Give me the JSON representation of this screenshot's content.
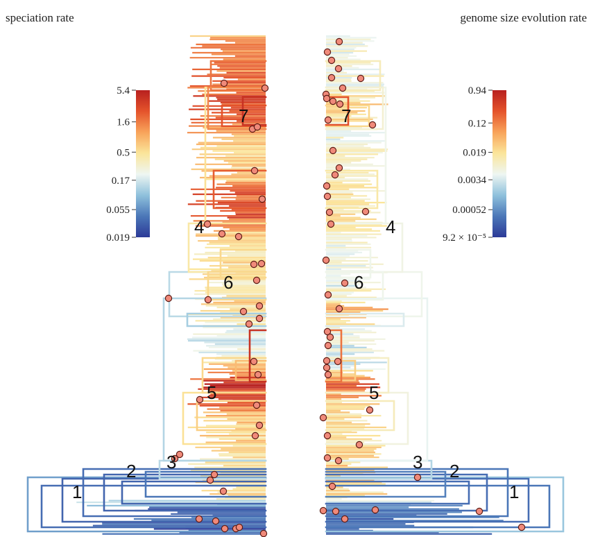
{
  "chart_data": [
    {
      "type": "heatmap",
      "title": "speciation rate",
      "panel": "left",
      "scale": "log",
      "colorbar_ticks": [
        "5.4",
        "1.6",
        "0.5",
        "0.17",
        "0.055",
        "0.019"
      ],
      "colorbar_values": [
        5.4,
        1.6,
        0.5,
        0.17,
        0.055,
        0.019
      ],
      "colormap": [
        "#2c3a97",
        "#4b77b8",
        "#8fc1dc",
        "#eef6f2",
        "#fbe59a",
        "#f8a35a",
        "#e4532b",
        "#b8201f"
      ],
      "clade_labels": [
        "1",
        "2",
        "3",
        "4",
        "5",
        "6",
        "7"
      ]
    },
    {
      "type": "heatmap",
      "title": "genome size evolution rate",
      "panel": "right",
      "scale": "log",
      "colorbar_ticks": [
        "0.94",
        "0.12",
        "0.019",
        "0.0034",
        "0.00052",
        "9.2 × 10⁻⁵"
      ],
      "colorbar_values": [
        0.94,
        0.12,
        0.019,
        0.0034,
        0.00052,
        9.2e-05
      ],
      "colormap": [
        "#2c3a97",
        "#4b77b8",
        "#8fc1dc",
        "#eef6f2",
        "#fbe59a",
        "#f8a35a",
        "#e4532b",
        "#b8201f"
      ],
      "clade_labels": [
        "1",
        "2",
        "3",
        "4",
        "5",
        "6",
        "7"
      ]
    }
  ],
  "colors": {
    "shift_marker_fill": "#f08a7a",
    "shift_marker_stroke": "#5a1a14"
  }
}
